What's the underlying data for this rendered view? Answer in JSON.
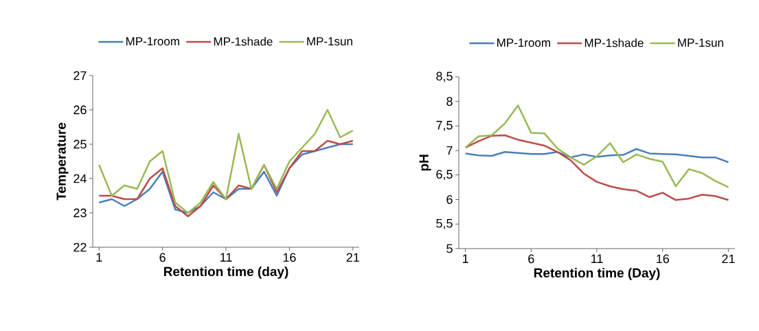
{
  "chart_data": [
    {
      "type": "line",
      "xlabel": "Retention time (day)",
      "ylabel": "Temperature",
      "x": [
        1,
        2,
        3,
        4,
        5,
        6,
        7,
        8,
        9,
        10,
        11,
        12,
        13,
        14,
        15,
        16,
        17,
        18,
        19,
        20,
        21
      ],
      "xlim": [
        0.5,
        21.5
      ],
      "xticks": [
        1,
        6,
        11,
        16,
        21
      ],
      "ylim": [
        22,
        27
      ],
      "yticks": [
        22,
        23,
        24,
        25,
        26,
        27
      ],
      "grid": false,
      "legend": "top",
      "series": [
        {
          "name": "MP-1room",
          "color": "#4a7ebb",
          "values": [
            23.3,
            23.4,
            23.2,
            23.4,
            23.7,
            24.2,
            23.1,
            23.0,
            23.2,
            23.6,
            23.4,
            23.7,
            23.7,
            24.2,
            23.5,
            24.3,
            24.7,
            24.8,
            24.9,
            25.0,
            25.0
          ]
        },
        {
          "name": "MP-1shade",
          "color": "#be4b48",
          "values": [
            23.5,
            23.5,
            23.4,
            23.4,
            24.0,
            24.3,
            23.2,
            22.9,
            23.2,
            23.8,
            23.4,
            23.8,
            23.7,
            24.4,
            23.6,
            24.3,
            24.8,
            24.8,
            25.1,
            25.0,
            25.1
          ]
        },
        {
          "name": "MP-1sun",
          "color": "#98b954",
          "values": [
            24.4,
            23.5,
            23.8,
            23.7,
            24.5,
            24.8,
            23.3,
            23.0,
            23.3,
            23.9,
            23.4,
            25.3,
            23.7,
            24.4,
            23.7,
            24.5,
            24.9,
            25.3,
            26.0,
            25.2,
            25.4
          ]
        }
      ]
    },
    {
      "type": "line",
      "xlabel": "Retention time (Day)",
      "ylabel": "pH",
      "x": [
        1,
        2,
        3,
        4,
        5,
        6,
        7,
        8,
        9,
        10,
        11,
        12,
        13,
        14,
        15,
        16,
        17,
        18,
        19,
        20,
        21
      ],
      "xlim": [
        0.5,
        21.5
      ],
      "xticks": [
        1,
        6,
        11,
        16,
        21
      ],
      "ylim": [
        5,
        8.5
      ],
      "yticks": [
        5,
        {
          "value": 5.5,
          "label": "5,5"
        },
        6,
        {
          "value": 6.5,
          "label": "6,5"
        },
        7,
        {
          "value": 7.5,
          "label": "7,5"
        },
        8,
        {
          "value": 8.5,
          "label": "8,5"
        }
      ],
      "grid": false,
      "legend": "top",
      "series": [
        {
          "name": "MP-1room",
          "color": "#4a7ebb",
          "values": [
            6.94,
            6.9,
            6.89,
            6.97,
            6.95,
            6.93,
            6.93,
            6.97,
            6.86,
            6.92,
            6.87,
            6.9,
            6.91,
            7.03,
            6.94,
            6.93,
            6.92,
            6.89,
            6.86,
            6.86,
            6.76
          ]
        },
        {
          "name": "MP-1shade",
          "color": "#be4b48",
          "values": [
            7.06,
            7.19,
            7.3,
            7.31,
            7.22,
            7.16,
            7.1,
            6.97,
            6.8,
            6.53,
            6.36,
            6.27,
            6.21,
            6.18,
            6.05,
            6.14,
            5.99,
            6.02,
            6.1,
            6.07,
            5.99
          ]
        },
        {
          "name": "MP-1sun",
          "color": "#98b954",
          "values": [
            7.06,
            7.29,
            7.31,
            7.55,
            7.92,
            7.36,
            7.35,
            7.04,
            6.86,
            6.71,
            6.88,
            7.15,
            6.76,
            6.92,
            6.83,
            6.77,
            6.27,
            6.62,
            6.54,
            6.38,
            6.25
          ]
        }
      ]
    }
  ]
}
